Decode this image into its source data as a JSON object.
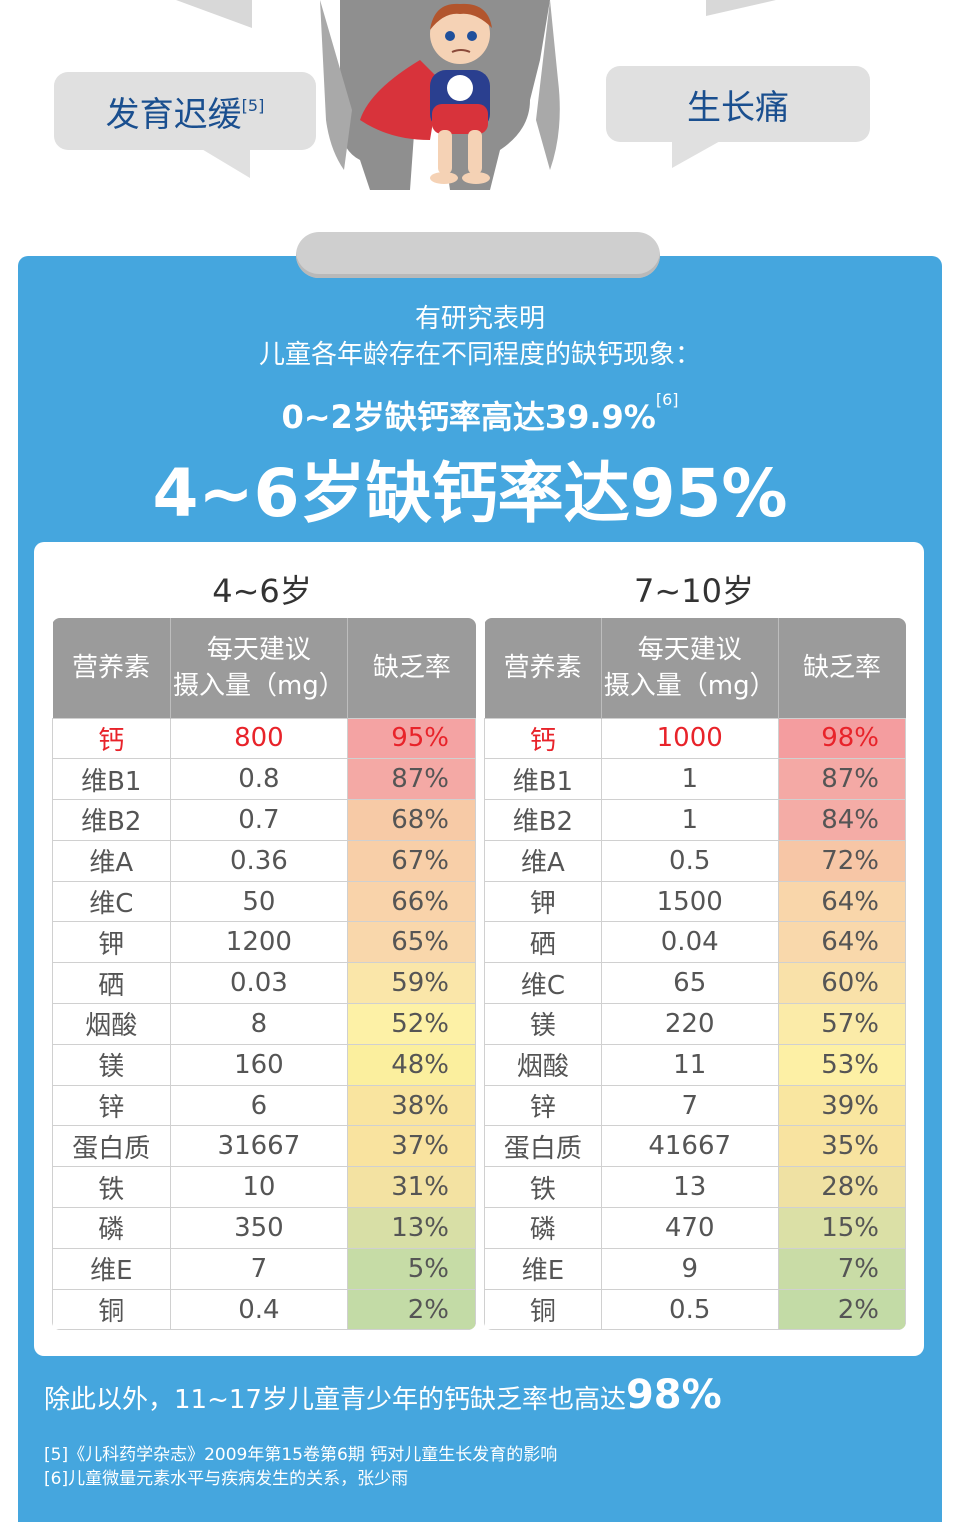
{
  "bubbles": {
    "left_text": "发育迟缓",
    "left_ref": "[5]",
    "right_text": "生长痛"
  },
  "intro": {
    "line1": "有研究表明",
    "line2": "儿童各年龄存在不同程度的缺钙现象："
  },
  "stats": {
    "line1": "0~2岁缺钙率高达39.9%",
    "line1_ref": "[6]",
    "line2": "4~6岁缺钙率达95%"
  },
  "tables": {
    "headers": {
      "nutrient": "营养素",
      "daily_1": "每天建议",
      "daily_2": "摄入量（mg）",
      "rate": "缺乏率"
    },
    "group_a": {
      "title": "4~6岁",
      "rows": [
        {
          "name": "钙",
          "intake": "800",
          "rate": "95%",
          "color": "#f4a3a3"
        },
        {
          "name": "维B1",
          "intake": "0.8",
          "rate": "87%",
          "color": "#f4a9a5"
        },
        {
          "name": "维B2",
          "intake": "0.7",
          "rate": "68%",
          "color": "#f7caa6"
        },
        {
          "name": "维A",
          "intake": "0.36",
          "rate": "67%",
          "color": "#f8cfa8"
        },
        {
          "name": "维C",
          "intake": "50",
          "rate": "66%",
          "color": "#f9d3aa"
        },
        {
          "name": "钾",
          "intake": "1200",
          "rate": "65%",
          "color": "#f9d7ab"
        },
        {
          "name": "硒",
          "intake": "0.03",
          "rate": "59%",
          "color": "#fae6a9"
        },
        {
          "name": "烟酸",
          "intake": "8",
          "rate": "52%",
          "color": "#fdf1a6"
        },
        {
          "name": "镁",
          "intake": "160",
          "rate": "48%",
          "color": "#fbef9e"
        },
        {
          "name": "锌",
          "intake": "6",
          "rate": "38%",
          "color": "#f9e49f"
        },
        {
          "name": "蛋白质",
          "intake": "31667",
          "rate": "37%",
          "color": "#f9e39f"
        },
        {
          "name": "铁",
          "intake": "10",
          "rate": "31%",
          "color": "#f3e2a2"
        },
        {
          "name": "磷",
          "intake": "350",
          "rate": "13%",
          "color": "#d8dfa6"
        },
        {
          "name": "维E",
          "intake": "7",
          "rate": "5%",
          "color": "#c6dca6"
        },
        {
          "name": "铜",
          "intake": "0.4",
          "rate": "2%",
          "color": "#c3dba6"
        }
      ]
    },
    "group_b": {
      "title": "7~10岁",
      "rows": [
        {
          "name": "钙",
          "intake": "1000",
          "rate": "98%",
          "color": "#f49d9f"
        },
        {
          "name": "维B1",
          "intake": "1",
          "rate": "87%",
          "color": "#f4a9a5"
        },
        {
          "name": "维B2",
          "intake": "1",
          "rate": "84%",
          "color": "#f4aca6"
        },
        {
          "name": "维A",
          "intake": "0.5",
          "rate": "72%",
          "color": "#f7c6a6"
        },
        {
          "name": "钾",
          "intake": "1500",
          "rate": "64%",
          "color": "#f9d6aa"
        },
        {
          "name": "硒",
          "intake": "0.04",
          "rate": "64%",
          "color": "#f9d8ab"
        },
        {
          "name": "维C",
          "intake": "65",
          "rate": "60%",
          "color": "#f9e1a9"
        },
        {
          "name": "镁",
          "intake": "220",
          "rate": "57%",
          "color": "#fbeba8"
        },
        {
          "name": "烟酸",
          "intake": "11",
          "rate": "53%",
          "color": "#fdf0a5"
        },
        {
          "name": "锌",
          "intake": "7",
          "rate": "39%",
          "color": "#f9e6a0"
        },
        {
          "name": "蛋白质",
          "intake": "41667",
          "rate": "35%",
          "color": "#f8e3a0"
        },
        {
          "name": "铁",
          "intake": "13",
          "rate": "28%",
          "color": "#efe1a3"
        },
        {
          "name": "磷",
          "intake": "470",
          "rate": "15%",
          "color": "#dbe0a6"
        },
        {
          "name": "维E",
          "intake": "9",
          "rate": "7%",
          "color": "#c9dca6"
        },
        {
          "name": "铜",
          "intake": "0.5",
          "rate": "2%",
          "color": "#c3dba6"
        }
      ]
    }
  },
  "bottom": {
    "note_text": "除此以外，11~17岁儿童青少年的钙缺乏率也高达",
    "note_big": "98%",
    "ref5": "[5]《儿科药学杂志》2009年第15卷第6期 钙对儿童生长发育的影响",
    "ref6": "[6]儿童微量元素水平与疾病发生的关系，张少雨"
  },
  "colors": {
    "panel_blue": "#45a6de",
    "header_gray": "#9b9b9b",
    "highlight_red": "#e8232a",
    "bubble_text": "#1a4f8f"
  },
  "icons": {
    "illustration": "child-superhero-illustration"
  }
}
